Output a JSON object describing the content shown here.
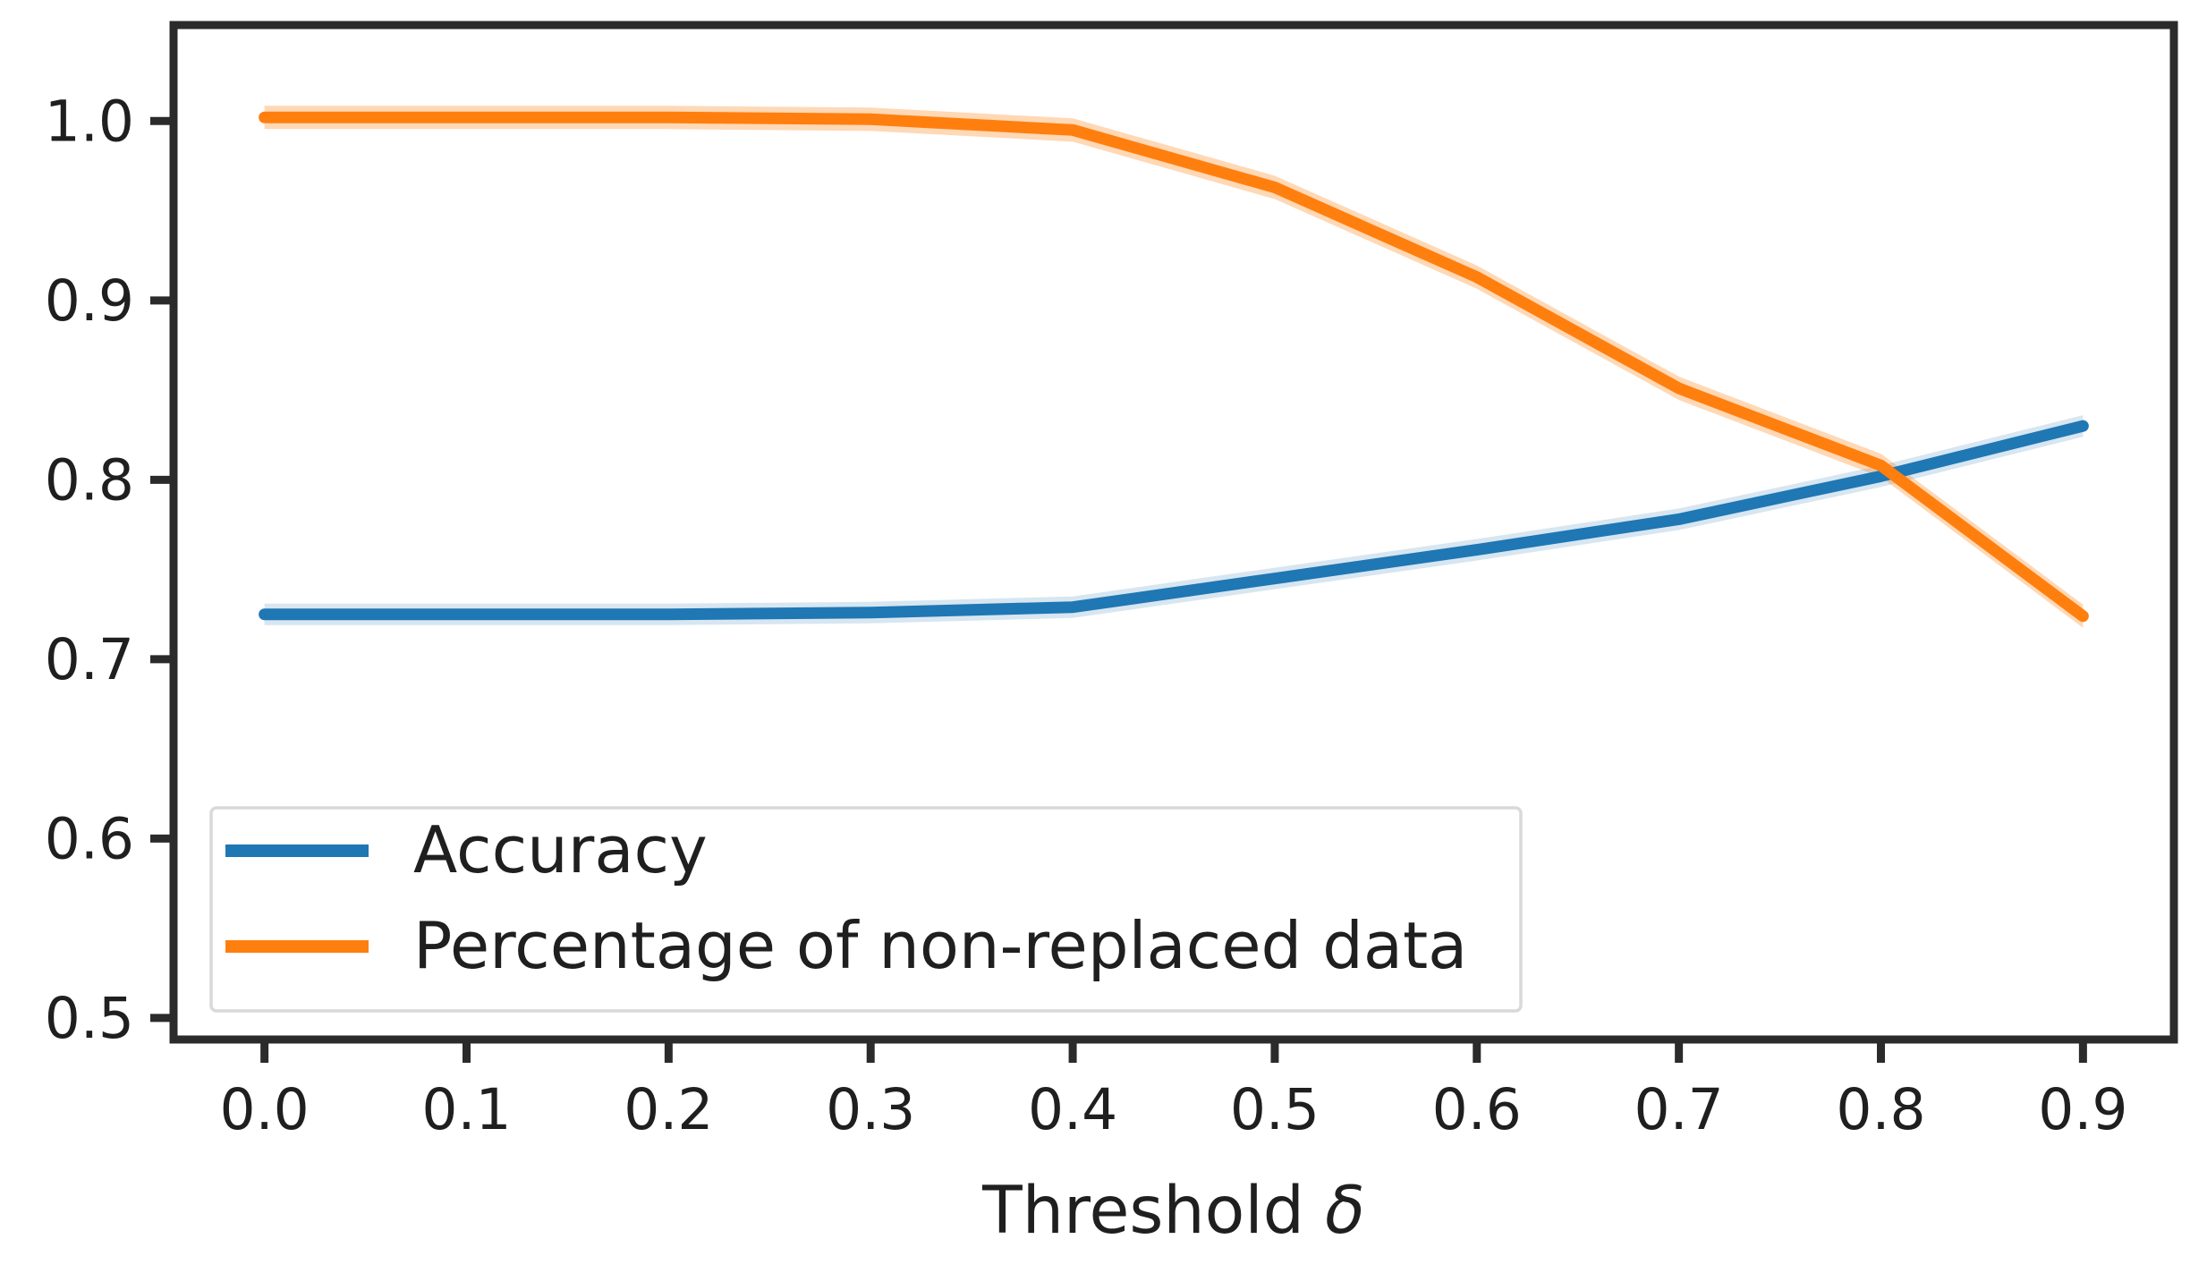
{
  "chart_data": {
    "type": "line",
    "title": "",
    "xlabel": "Threshold δ",
    "xlabel_text": "Threshold ",
    "xlabel_symbol": "δ",
    "ylabel": "",
    "x": [
      0.0,
      0.1,
      0.2,
      0.3,
      0.4,
      0.5,
      0.6,
      0.7,
      0.8,
      0.9
    ],
    "series": [
      {
        "name": "Accuracy",
        "color": "#1f77b4",
        "values": [
          0.725,
          0.725,
          0.725,
          0.726,
          0.729,
          0.745,
          0.761,
          0.778,
          0.802,
          0.83
        ],
        "band_halfwidth": 0.006,
        "band_opacity": 0.18
      },
      {
        "name": "Percentage of non-replaced data",
        "color": "#ff7f0e",
        "values": [
          1.002,
          1.002,
          1.002,
          1.001,
          0.995,
          0.963,
          0.913,
          0.851,
          0.808,
          0.724
        ],
        "band_halfwidth": 0.0065,
        "band_opacity": 0.3
      }
    ],
    "x_tick_labels": [
      "0.0",
      "0.1",
      "0.2",
      "0.3",
      "0.4",
      "0.5",
      "0.6",
      "0.7",
      "0.8",
      "0.9"
    ],
    "y_tick_labels": [
      "0.5",
      "0.6",
      "0.7",
      "0.8",
      "0.9",
      "1.0"
    ],
    "y_ticks": [
      0.5,
      0.6,
      0.7,
      0.8,
      0.9,
      1.0
    ],
    "x_ticks": [
      0.0,
      0.1,
      0.2,
      0.3,
      0.4,
      0.5,
      0.6,
      0.7,
      0.8,
      0.9
    ],
    "xlim": [
      -0.045,
      0.945
    ],
    "ylim": [
      0.488,
      1.0535
    ],
    "grid": false,
    "legend_position": "lower-left"
  },
  "colors": {
    "background": "#ffffff",
    "axis": "#2b2b2b",
    "tick_text": "#1f1f1f",
    "legend_border": "#d9d9d9",
    "legend_background": "#ffffff",
    "accent_blue": "#1f77b4",
    "accent_orange": "#ff7f0e"
  }
}
